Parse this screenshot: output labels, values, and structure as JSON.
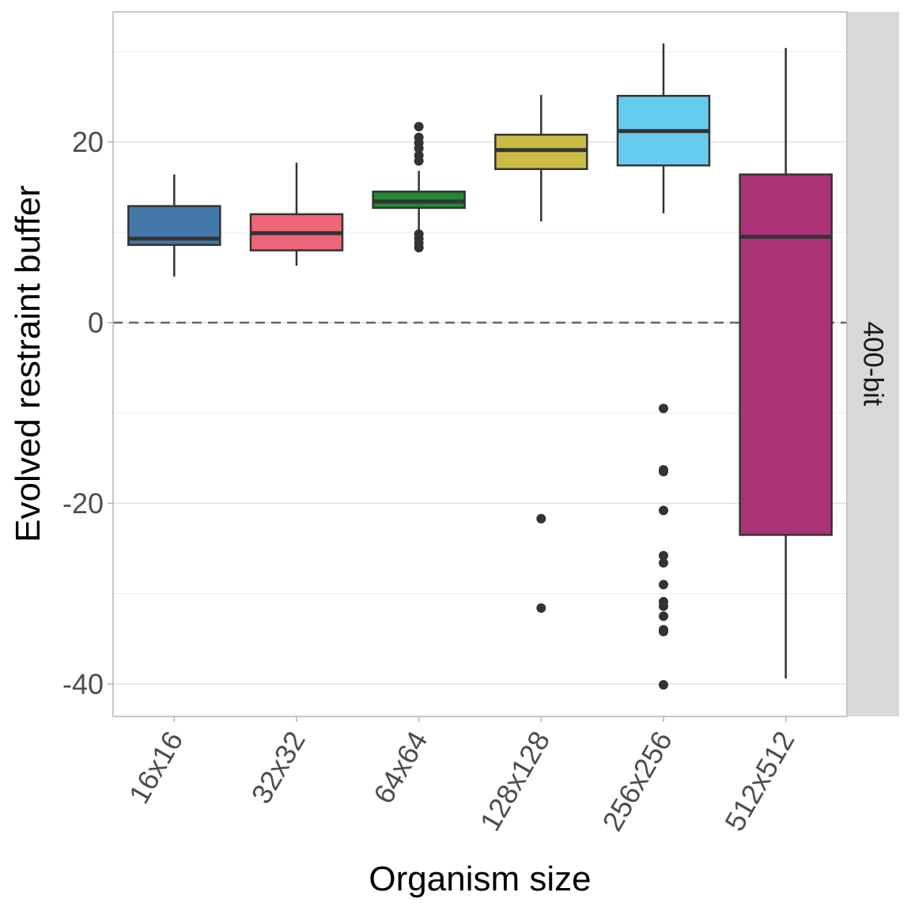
{
  "chart_data": {
    "type": "boxplot",
    "title": "",
    "xlabel": "Organism size",
    "ylabel": "Evolved restraint buffer",
    "facet_label": "400-bit",
    "categories": [
      "16x16",
      "32x32",
      "64x64",
      "128x128",
      "256x256",
      "512x512"
    ],
    "ylim": [
      -43.6,
      34.4
    ],
    "yticks": [
      -40,
      -20,
      0,
      20
    ],
    "ytick_labels": [
      "-40",
      "-20",
      "0",
      "20"
    ],
    "minor_yticks": [
      -30,
      -10,
      10,
      30
    ],
    "reference_line": {
      "y": 0,
      "style": "dashed"
    },
    "grid": true,
    "legend": "none",
    "series": [
      {
        "name": "16x16",
        "color": "#4477AA",
        "whisker_low": 5.1,
        "q1": 8.6,
        "median": 9.3,
        "q3": 12.9,
        "whisker_high": 16.4,
        "outliers": []
      },
      {
        "name": "32x32",
        "color": "#EE6677",
        "whisker_low": 6.3,
        "q1": 8.0,
        "median": 9.9,
        "q3": 12.0,
        "whisker_high": 17.7,
        "outliers": []
      },
      {
        "name": "64x64",
        "color": "#228833",
        "whisker_low": 10.1,
        "q1": 12.7,
        "median": 13.4,
        "q3": 14.5,
        "whisker_high": 16.8,
        "outliers": [
          21.7,
          20.5,
          19.9,
          19.3,
          18.5,
          17.9,
          9.8,
          9.3,
          8.8,
          8.3
        ]
      },
      {
        "name": "128x128",
        "color": "#CCBB44",
        "whisker_low": 11.2,
        "q1": 17.0,
        "median": 19.1,
        "q3": 20.8,
        "whisker_high": 25.2,
        "outliers": [
          -21.7,
          -31.6
        ]
      },
      {
        "name": "256x256",
        "color": "#66CCEE",
        "whisker_low": 12.1,
        "q1": 17.4,
        "median": 21.2,
        "q3": 25.1,
        "whisker_high": 30.9,
        "outliers": [
          -9.5,
          -16.3,
          -16.5,
          -20.8,
          -25.8,
          -26.6,
          -29.0,
          -30.9,
          -31.4,
          -32.5,
          -34.0,
          -34.2,
          -40.1
        ]
      },
      {
        "name": "512x512",
        "color": "#AA3377",
        "whisker_low": -39.4,
        "q1": -23.5,
        "median": 9.5,
        "q3": 16.4,
        "whisker_high": 30.4,
        "outliers": []
      }
    ]
  }
}
